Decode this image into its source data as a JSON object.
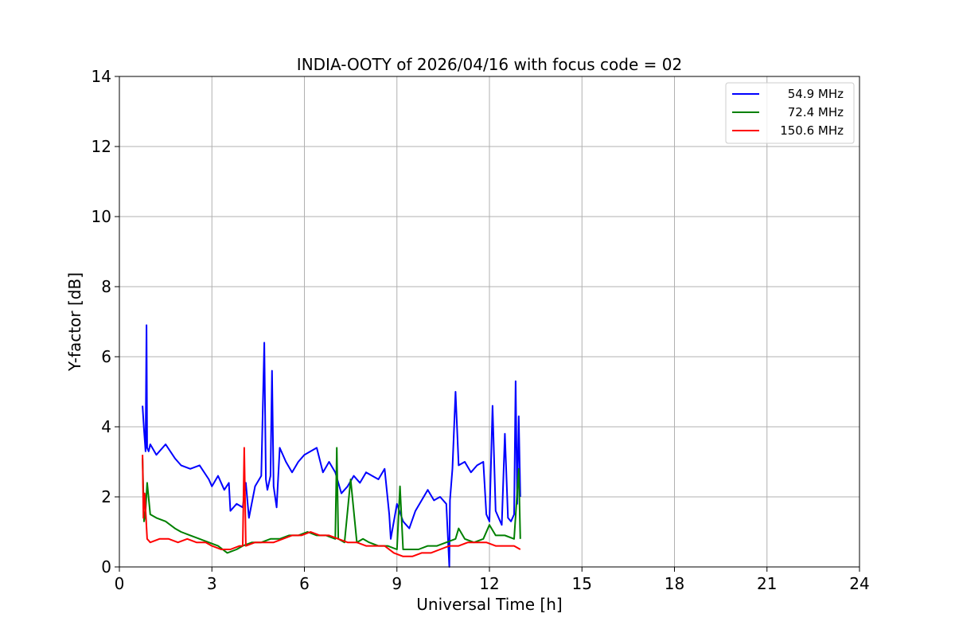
{
  "chart_data": {
    "type": "line",
    "title": "INDIA-OOTY of 2026/04/16 with focus code = 02",
    "xlabel": "Universal Time [h]",
    "ylabel": "Y-factor [dB]",
    "xlim": [
      0,
      24
    ],
    "ylim": [
      0,
      14
    ],
    "xticks": [
      0,
      3,
      6,
      9,
      12,
      15,
      18,
      21,
      24
    ],
    "yticks": [
      0,
      2,
      4,
      6,
      8,
      10,
      12,
      14
    ],
    "grid": true,
    "legend_position": "top-right",
    "series": [
      {
        "name": "54.9 MHz",
        "color": "#0000ff",
        "x": [
          0.75,
          0.8,
          0.85,
          0.88,
          0.9,
          0.95,
          1.0,
          1.2,
          1.5,
          1.8,
          2.0,
          2.3,
          2.6,
          2.9,
          3.0,
          3.2,
          3.4,
          3.55,
          3.6,
          3.8,
          4.0,
          4.1,
          4.2,
          4.4,
          4.6,
          4.7,
          4.75,
          4.8,
          4.9,
          4.95,
          5.0,
          5.1,
          5.2,
          5.4,
          5.6,
          5.8,
          6.0,
          6.2,
          6.4,
          6.6,
          6.8,
          7.0,
          7.2,
          7.4,
          7.6,
          7.8,
          8.0,
          8.2,
          8.4,
          8.6,
          8.75,
          8.8,
          9.0,
          9.2,
          9.4,
          9.6,
          9.8,
          10.0,
          10.2,
          10.4,
          10.6,
          10.7,
          10.72,
          10.8,
          10.9,
          11.0,
          11.2,
          11.4,
          11.6,
          11.8,
          11.9,
          12.0,
          12.1,
          12.2,
          12.3,
          12.4,
          12.5,
          12.6,
          12.7,
          12.8,
          12.85,
          12.9,
          12.95,
          13.0
        ],
        "values": [
          4.6,
          3.9,
          3.3,
          6.9,
          3.4,
          3.3,
          3.5,
          3.2,
          3.5,
          3.1,
          2.9,
          2.8,
          2.9,
          2.5,
          2.3,
          2.6,
          2.2,
          2.4,
          1.6,
          1.8,
          1.7,
          2.4,
          1.4,
          2.3,
          2.6,
          6.4,
          2.5,
          2.2,
          2.6,
          5.6,
          2.3,
          1.7,
          3.4,
          3.0,
          2.7,
          3.0,
          3.2,
          3.3,
          3.4,
          2.7,
          3.0,
          2.7,
          2.1,
          2.3,
          2.6,
          2.4,
          2.7,
          2.6,
          2.5,
          2.8,
          1.5,
          0.8,
          1.8,
          1.3,
          1.1,
          1.6,
          1.9,
          2.2,
          1.9,
          2.0,
          1.8,
          0.0,
          1.9,
          2.8,
          5.0,
          2.9,
          3.0,
          2.7,
          2.9,
          3.0,
          1.5,
          1.3,
          4.6,
          1.6,
          1.4,
          1.2,
          3.8,
          1.4,
          1.3,
          1.5,
          5.3,
          1.8,
          4.3,
          2.0
        ]
      },
      {
        "name": "72.4 MHz",
        "color": "#008000",
        "x": [
          0.75,
          0.8,
          0.85,
          0.9,
          1.0,
          1.2,
          1.5,
          1.8,
          2.0,
          2.3,
          2.6,
          2.9,
          3.2,
          3.5,
          3.8,
          4.0,
          4.3,
          4.6,
          4.9,
          5.2,
          5.5,
          5.8,
          6.1,
          6.4,
          6.7,
          7.0,
          7.05,
          7.1,
          7.3,
          7.5,
          7.7,
          7.9,
          8.1,
          8.4,
          8.7,
          9.0,
          9.1,
          9.2,
          9.4,
          9.7,
          10.0,
          10.3,
          10.6,
          10.9,
          11.0,
          11.2,
          11.5,
          11.8,
          12.0,
          12.2,
          12.5,
          12.8,
          12.95,
          13.0
        ],
        "values": [
          3.1,
          1.3,
          1.6,
          2.4,
          1.5,
          1.4,
          1.3,
          1.1,
          1.0,
          0.9,
          0.8,
          0.7,
          0.6,
          0.4,
          0.5,
          0.6,
          0.7,
          0.7,
          0.8,
          0.8,
          0.9,
          0.9,
          1.0,
          0.9,
          0.9,
          0.8,
          3.4,
          0.8,
          0.7,
          2.5,
          0.7,
          0.8,
          0.7,
          0.6,
          0.6,
          0.5,
          2.3,
          0.5,
          0.5,
          0.5,
          0.6,
          0.6,
          0.7,
          0.8,
          1.1,
          0.8,
          0.7,
          0.8,
          1.2,
          0.9,
          0.9,
          0.8,
          2.8,
          0.8
        ]
      },
      {
        "name": "150.6 MHz",
        "color": "#ff0000",
        "x": [
          0.75,
          0.78,
          0.82,
          0.9,
          1.0,
          1.3,
          1.6,
          1.9,
          2.2,
          2.5,
          2.8,
          3.0,
          3.3,
          3.6,
          3.9,
          4.0,
          4.05,
          4.1,
          4.4,
          4.7,
          5.0,
          5.3,
          5.6,
          5.9,
          6.2,
          6.5,
          6.8,
          7.1,
          7.4,
          7.7,
          8.0,
          8.3,
          8.6,
          8.9,
          9.2,
          9.5,
          9.8,
          10.1,
          10.4,
          10.7,
          11.0,
          11.3,
          11.6,
          11.9,
          12.2,
          12.5,
          12.8,
          13.0
        ],
        "values": [
          3.2,
          1.4,
          2.1,
          0.8,
          0.7,
          0.8,
          0.8,
          0.7,
          0.8,
          0.7,
          0.7,
          0.6,
          0.5,
          0.5,
          0.6,
          0.6,
          3.4,
          0.6,
          0.7,
          0.7,
          0.7,
          0.8,
          0.9,
          0.9,
          1.0,
          0.9,
          0.9,
          0.8,
          0.7,
          0.7,
          0.6,
          0.6,
          0.6,
          0.4,
          0.3,
          0.3,
          0.4,
          0.4,
          0.5,
          0.6,
          0.6,
          0.7,
          0.7,
          0.7,
          0.6,
          0.6,
          0.6,
          0.5
        ]
      }
    ]
  }
}
